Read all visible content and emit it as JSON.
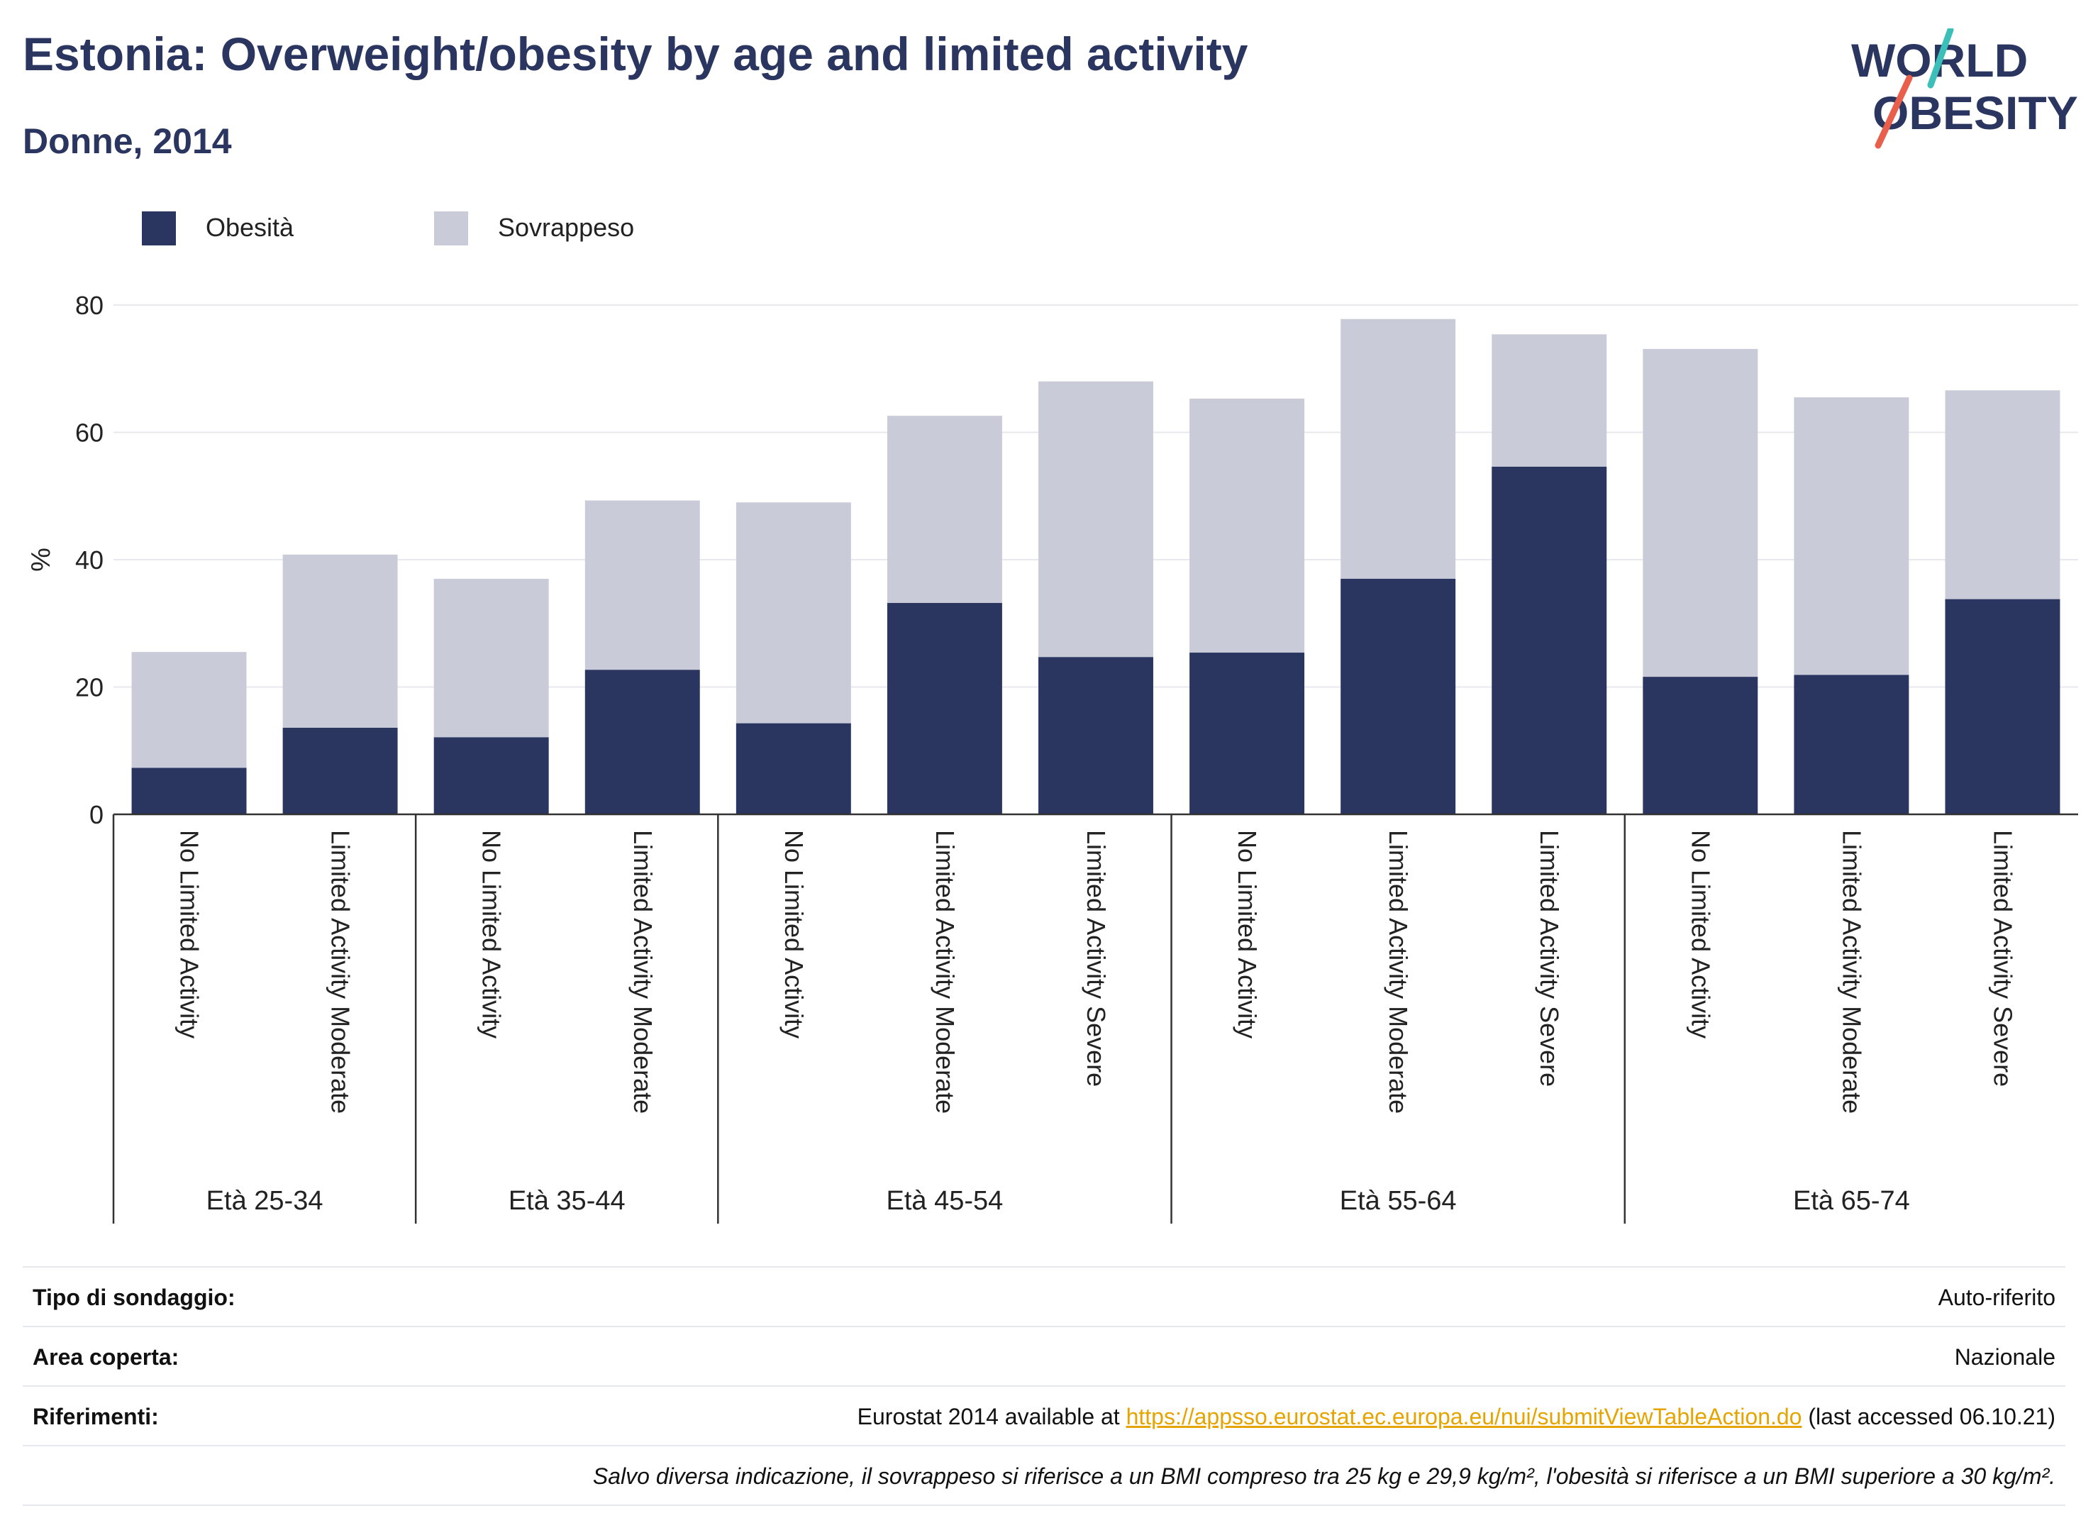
{
  "header": {
    "title": "Estonia: Overweight/obesity by age and limited activity",
    "subtitle": "Donne, 2014"
  },
  "logo": {
    "line1": "WORLD",
    "line2": "OBESITY",
    "accent_colors": [
      "#3bbfb8",
      "#e8604c"
    ]
  },
  "colors": {
    "obesity": "#2a3560",
    "overweight": "#c9ccd8",
    "text_dark": "#2a3560"
  },
  "chart_data": {
    "type": "bar",
    "stacked": true,
    "ylabel": "%",
    "ylim": [
      0,
      80
    ],
    "yticks": [
      0,
      20,
      40,
      60,
      80
    ],
    "grid": true,
    "legend": [
      {
        "name": "Obesità",
        "color": "#2a3560"
      },
      {
        "name": "Sovrappeso",
        "color": "#c9ccd8"
      }
    ],
    "groups": [
      {
        "label": "Età 25-34",
        "bars": [
          {
            "category": "No Limited Activity",
            "obesity": 7.3,
            "total": 25.5
          },
          {
            "category": "Limited Activity Moderate",
            "obesity": 13.6,
            "total": 40.8
          }
        ]
      },
      {
        "label": "Età 35-44",
        "bars": [
          {
            "category": "No Limited Activity",
            "obesity": 12.1,
            "total": 37.0
          },
          {
            "category": "Limited Activity Moderate",
            "obesity": 22.7,
            "total": 49.3
          }
        ]
      },
      {
        "label": "Età 45-54",
        "bars": [
          {
            "category": "No Limited Activity",
            "obesity": 14.3,
            "total": 49.0
          },
          {
            "category": "Limited Activity Moderate",
            "obesity": 33.2,
            "total": 62.6
          },
          {
            "category": "Limited Activity Severe",
            "obesity": 24.7,
            "total": 68.0
          }
        ]
      },
      {
        "label": "Età 55-64",
        "bars": [
          {
            "category": "No Limited Activity",
            "obesity": 25.4,
            "total": 65.3
          },
          {
            "category": "Limited Activity Moderate",
            "obesity": 37.0,
            "total": 77.8
          },
          {
            "category": "Limited Activity Severe",
            "obesity": 54.6,
            "total": 75.4
          }
        ]
      },
      {
        "label": "Età 65-74",
        "bars": [
          {
            "category": "No Limited Activity",
            "obesity": 21.6,
            "total": 73.1
          },
          {
            "category": "Limited Activity Moderate",
            "obesity": 21.9,
            "total": 65.5
          },
          {
            "category": "Limited Activity Severe",
            "obesity": 33.8,
            "total": 66.6
          }
        ]
      }
    ]
  },
  "footer": {
    "survey_type": {
      "label": "Tipo di sondaggio:",
      "value": "Auto-riferito"
    },
    "area": {
      "label": "Area coperta:",
      "value": "Nazionale"
    },
    "references": {
      "label": "Riferimenti:",
      "prefix": "Eurostat 2014 available at ",
      "link": "https://appsso.eurostat.ec.europa.eu/nui/submitViewTableAction.do",
      "suffix": " (last accessed 06.10.21)"
    },
    "note": "Salvo diversa indicazione, il sovrappeso si riferisce a un BMI compreso tra 25 kg e 29,9 kg/m², l'obesità si riferisce a un BMI superiore a 30 kg/m²."
  }
}
